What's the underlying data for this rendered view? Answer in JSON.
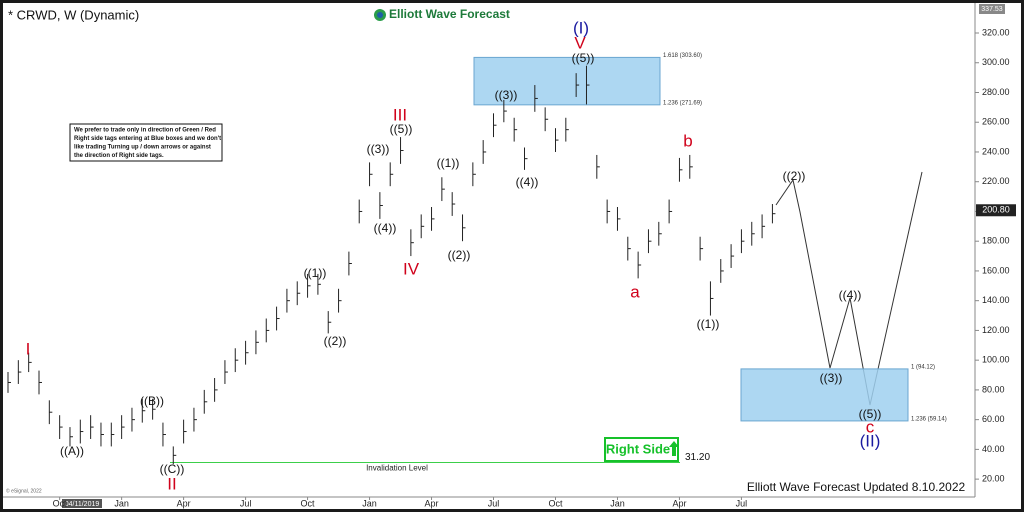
{
  "chart_data": {
    "type": "ohlc",
    "title": "* CRWD, W (Dynamic)",
    "brand": "Elliott Wave Forecast",
    "footer": "Elliott Wave Forecast Updated 8.10.2022",
    "copyright": "© eSignal, 2022",
    "cursor_date": "04/11/2019",
    "top_price": "337.53",
    "last_price": 200.8,
    "last_price_label": "200.80",
    "categories": [
      null,
      null,
      null,
      null,
      null,
      "Oct",
      null,
      null,
      null,
      null,
      null,
      "Jan",
      null,
      null,
      null,
      null,
      null,
      "Apr",
      null,
      null,
      null,
      null,
      null,
      "Jul",
      null,
      null,
      null,
      null,
      null,
      "Oct",
      null,
      null,
      null,
      null,
      null,
      "Jan",
      null,
      null,
      null,
      null,
      null,
      "Apr",
      null,
      null,
      null,
      null,
      null,
      "Jul",
      null,
      null,
      null,
      null,
      null,
      "Oct",
      null,
      null,
      null,
      null,
      null,
      "Jan",
      null,
      null,
      null,
      null,
      null,
      "Apr",
      null,
      null,
      null,
      null,
      null,
      "Jul",
      null,
      null,
      null
    ],
    "series": [
      {
        "name": "High",
        "color": "#222222",
        "values": [
          92,
          100,
          105,
          93,
          73,
          63,
          55,
          60,
          63,
          58,
          58,
          63,
          68,
          74,
          74,
          58,
          42,
          60,
          68,
          80,
          88,
          100,
          108,
          113,
          120,
          128,
          136,
          148,
          153,
          158,
          158,
          133,
          148,
          173,
          208,
          233,
          213,
          233,
          250,
          188,
          198,
          203,
          223,
          213,
          198,
          233,
          248,
          266,
          275,
          263,
          243,
          285,
          270,
          256,
          263,
          293,
          298,
          238,
          208,
          203,
          183,
          173,
          188,
          193,
          208,
          236,
          238,
          183,
          153,
          168,
          178,
          188,
          193,
          198,
          205
        ]
      },
      {
        "name": "Low",
        "color": "#222222",
        "values": [
          78,
          84,
          92,
          77,
          57,
          47,
          42,
          44,
          47,
          42,
          42,
          47,
          52,
          58,
          60,
          42,
          30,
          44,
          52,
          64,
          72,
          84,
          92,
          97,
          104,
          112,
          120,
          132,
          137,
          142,
          144,
          118,
          132,
          157,
          192,
          217,
          195,
          217,
          232,
          170,
          182,
          187,
          207,
          197,
          180,
          217,
          232,
          250,
          260,
          247,
          228,
          267,
          254,
          240,
          247,
          277,
          272,
          222,
          192,
          187,
          167,
          155,
          172,
          177,
          192,
          220,
          222,
          167,
          130,
          152,
          162,
          172,
          177,
          182,
          192
        ]
      }
    ],
    "ylim": [
      10,
      335
    ],
    "yticks": [
      {
        "value": 320,
        "label": "320.00"
      },
      {
        "value": 300,
        "label": "300.00"
      },
      {
        "value": 280,
        "label": "280.00"
      },
      {
        "value": 260,
        "label": "260.00"
      },
      {
        "value": 240,
        "label": "240.00"
      },
      {
        "value": 220,
        "label": "220.00"
      },
      {
        "value": 200,
        "label": "200.00"
      },
      {
        "value": 180,
        "label": "180.00"
      },
      {
        "value": 160,
        "label": "160.00"
      },
      {
        "value": 140,
        "label": "140.00"
      },
      {
        "value": 120,
        "label": "120.00"
      },
      {
        "value": 100,
        "label": "100.00"
      },
      {
        "value": 80,
        "label": "80.00"
      },
      {
        "value": 60,
        "label": "60.00"
      },
      {
        "value": 40,
        "label": "40.00"
      },
      {
        "value": 20,
        "label": "20.00"
      }
    ],
    "zones": [
      {
        "top": {
          "value": 303.6,
          "label": "1.618 (303.60)"
        },
        "bottom": {
          "value": 271.69,
          "label": "1.236 (271.69)"
        }
      },
      {
        "top": {
          "value": 94.12,
          "label": "1 (94.12)"
        },
        "bottom": {
          "value": 59.14,
          "label": "1.236 (59.14)"
        }
      }
    ],
    "invalidation": {
      "value": 31.2,
      "value_label": "31.20",
      "label": "Invalidation Level"
    },
    "right_side_tag": "Right Side",
    "note": [
      "We prefer to trade only in direction of Green / Red",
      "Right side tags entering at Blue boxes and we don't",
      "like trading Turning up / down arrows or against",
      "the direction of Right side tags."
    ],
    "wave_labels": [
      {
        "text": "I",
        "color": "#d0021b"
      },
      {
        "text": "((A))",
        "color": "#111111"
      },
      {
        "text": "((B))",
        "color": "#111111"
      },
      {
        "text": "((C))",
        "color": "#111111"
      },
      {
        "text": "II",
        "color": "#d0021b"
      },
      {
        "text": "((1))",
        "color": "#111111"
      },
      {
        "text": "((2))",
        "color": "#111111"
      },
      {
        "text": "((3))",
        "color": "#111111"
      },
      {
        "text": "((4))",
        "color": "#111111"
      },
      {
        "text": "((5))",
        "color": "#111111"
      },
      {
        "text": "III",
        "color": "#d0021b"
      },
      {
        "text": "IV",
        "color": "#d0021b"
      },
      {
        "text": "((1))",
        "color": "#111111"
      },
      {
        "text": "((2))",
        "color": "#111111"
      },
      {
        "text": "((3))",
        "color": "#111111"
      },
      {
        "text": "((4))",
        "color": "#111111"
      },
      {
        "text": "((5))",
        "color": "#111111"
      },
      {
        "text": "V",
        "color": "#d0021b"
      },
      {
        "text": "(I)",
        "color": "#1a1aa0"
      },
      {
        "text": "a",
        "color": "#d0021b"
      },
      {
        "text": "b",
        "color": "#d0021b"
      },
      {
        "text": "((1))",
        "color": "#111111"
      },
      {
        "text": "((2))",
        "color": "#111111"
      },
      {
        "text": "((3))",
        "color": "#111111"
      },
      {
        "text": "((4))",
        "color": "#111111"
      },
      {
        "text": "((5))",
        "color": "#111111"
      },
      {
        "text": "c",
        "color": "#d0021b"
      },
      {
        "text": "(II)",
        "color": "#1a1aa0"
      }
    ]
  }
}
